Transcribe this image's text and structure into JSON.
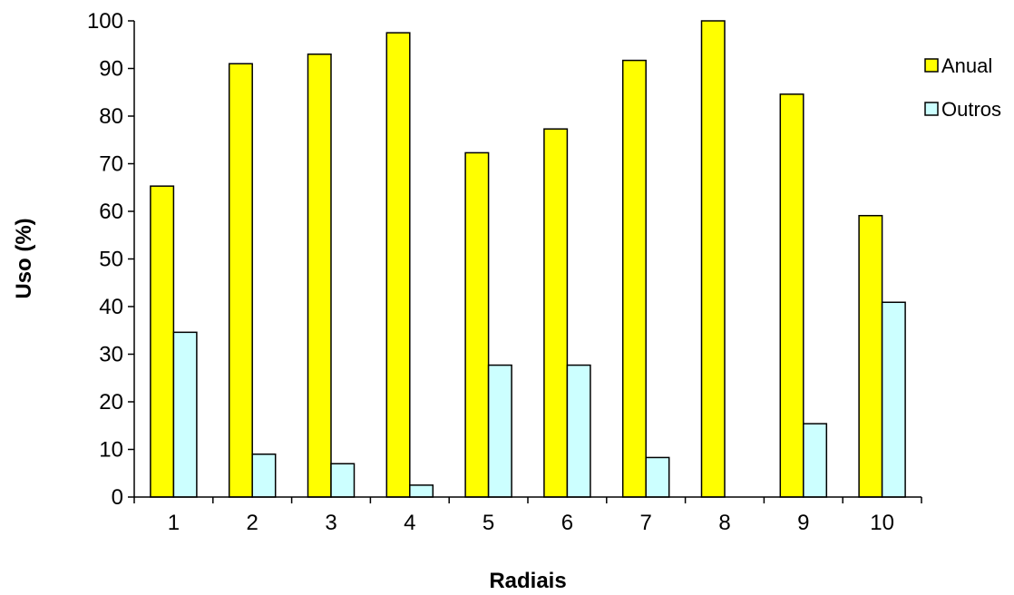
{
  "chart_data": {
    "type": "bar",
    "categories": [
      "1",
      "2",
      "3",
      "4",
      "5",
      "6",
      "7",
      "8",
      "9",
      "10"
    ],
    "series": [
      {
        "name": "Anual",
        "color": "#FFFF00",
        "values": [
          65.3,
          91.0,
          93.0,
          97.5,
          72.3,
          77.3,
          91.7,
          100.0,
          84.6,
          59.1
        ]
      },
      {
        "name": "Outros",
        "color": "#CCFFFF",
        "values": [
          34.6,
          9.0,
          7.0,
          2.5,
          27.7,
          27.7,
          8.3,
          0,
          15.4,
          40.9
        ]
      }
    ],
    "xlabel": "Radiais",
    "ylabel": "Uso (%)",
    "ylim": [
      0,
      100
    ],
    "yticks": [
      0,
      10,
      20,
      30,
      40,
      50,
      60,
      70,
      80,
      90,
      100
    ],
    "grid": false,
    "legend": "right"
  }
}
